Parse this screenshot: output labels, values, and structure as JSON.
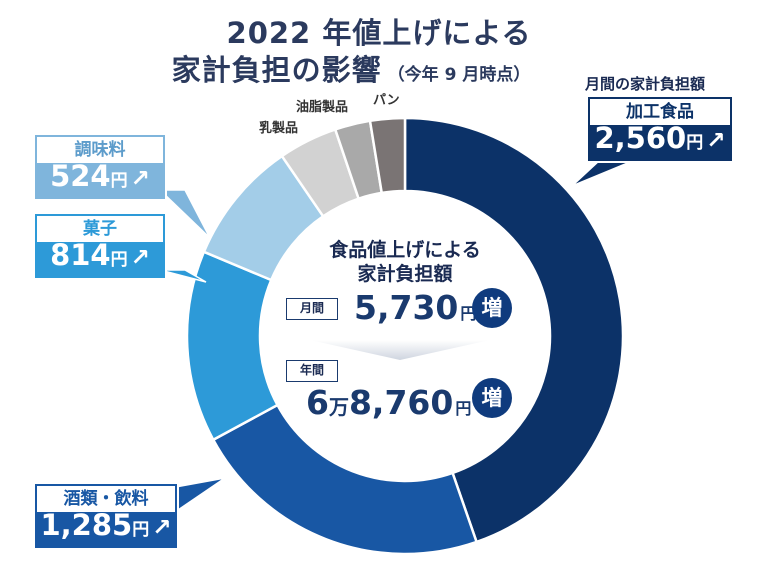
{
  "title_line1": "2022 年値上げによる",
  "title_line2": "家計負担の影響",
  "title_note": "（今年 9 月時点）",
  "top_caption": "月間の家計負担額",
  "yen_unit": "円",
  "arrow_glyph": "↗",
  "center": {
    "title_line1": "食品値上げによる",
    "title_line2": "家計負担額",
    "monthly_tag": "月間",
    "monthly_value": "5,730",
    "annual_tag": "年間",
    "annual_prefix": "6",
    "annual_man": "万",
    "annual_rest": "8,760",
    "increase_badge": "増"
  },
  "colors": {
    "processed": "#0c3268",
    "beverages": "#1857a4",
    "snacks": "#2d9ad8",
    "seasoning": "#a3cde8",
    "dairy": "#d2d2d2",
    "oils": "#a9a9a9",
    "bread": "#7a7474",
    "accent": "#0f3b7e"
  },
  "chart_data": {
    "type": "pie",
    "subtype": "donut",
    "title": "2022 年値上げによる 家計負担の影響（今年 9 月時点）",
    "unit": "円",
    "legend": "none",
    "slices": [
      {
        "label": "加工食品",
        "value": 2560,
        "color": "#0c3268"
      },
      {
        "label": "酒類・飲料",
        "value": 1285,
        "color": "#1857a4"
      },
      {
        "label": "菓子",
        "value": 814,
        "color": "#2d9ad8"
      },
      {
        "label": "調味料",
        "value": 524,
        "color": "#a3cde8"
      },
      {
        "label": "乳製品",
        "value": 250,
        "color": "#d2d2d2"
      },
      {
        "label": "油脂製品",
        "value": 150,
        "color": "#a9a9a9"
      },
      {
        "label": "パン",
        "value": 147,
        "color": "#7a7474"
      }
    ],
    "total_monthly": 5730,
    "total_annual": 68760
  }
}
